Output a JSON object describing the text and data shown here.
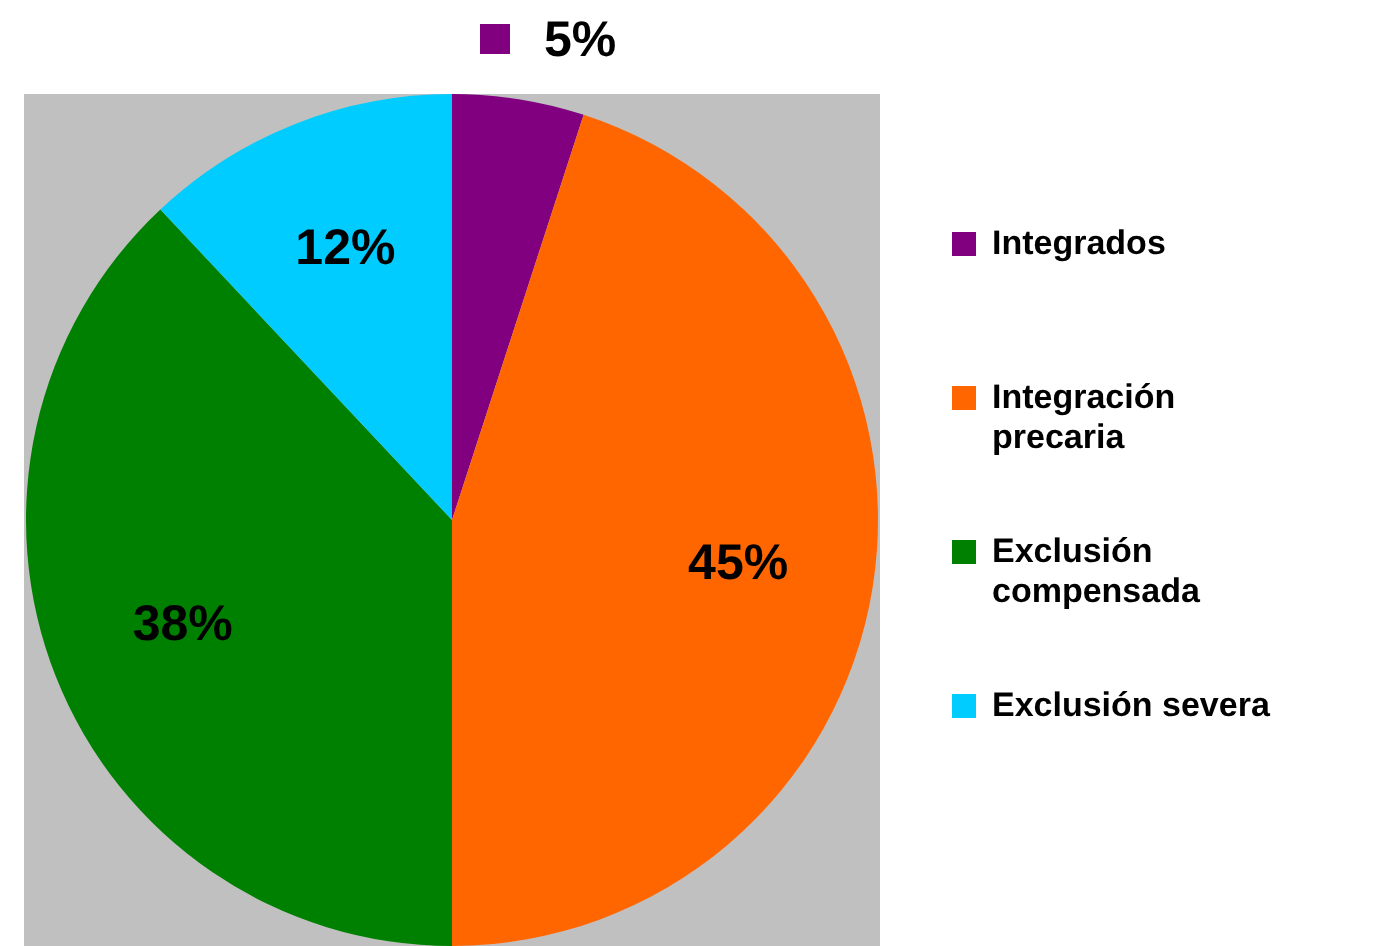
{
  "chart_data": {
    "type": "pie",
    "categories": [
      "Integrados",
      "Integración precaria",
      "Exclusión compensada",
      "Exclusión severa"
    ],
    "values": [
      5,
      45,
      38,
      12
    ],
    "colors": [
      "#800080",
      "#ff6600",
      "#008000",
      "#00ccff"
    ],
    "value_labels": [
      "5%",
      "45%",
      "38%",
      "12%"
    ],
    "legend": "right"
  }
}
